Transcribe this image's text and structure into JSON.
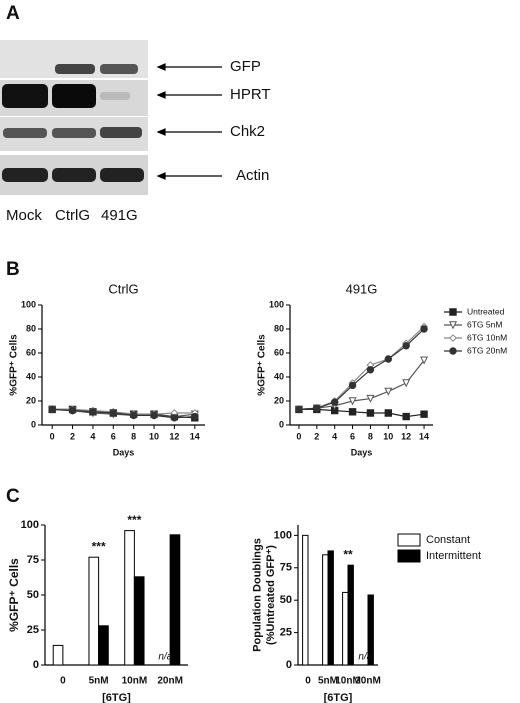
{
  "panel_labels": [
    "A",
    "B",
    "C"
  ],
  "blot": {
    "bands": [
      "GFP",
      "HPRT",
      "Chk2",
      "Actin"
    ],
    "lanes": [
      "Mock",
      "CtrlG",
      "491G"
    ]
  },
  "chart_data": [
    {
      "type": "line",
      "title": "CtrlG",
      "ylabel": "%GFP⁺ Cells",
      "xlabel": "Days",
      "x": [
        0,
        2,
        4,
        6,
        8,
        10,
        12,
        14
      ],
      "xlim": [
        -1,
        15
      ],
      "xticks": [
        0,
        2,
        4,
        6,
        8,
        10,
        12,
        14
      ],
      "ylim": [
        0,
        100
      ],
      "yticks": [
        0,
        20,
        40,
        60,
        80,
        100
      ],
      "series": [
        {
          "color": "#222222",
          "marker": "square",
          "values": [
            13,
            13,
            11,
            10,
            9,
            9,
            7,
            6
          ]
        },
        {
          "color": "#555555",
          "marker": "triangle",
          "values": [
            13,
            12,
            10,
            9,
            8,
            8,
            7,
            9
          ]
        },
        {
          "color": "#888888",
          "marker": "diamond",
          "values": [
            13,
            13,
            12,
            11,
            9,
            9,
            10,
            10
          ]
        },
        {
          "color": "#333333",
          "marker": "circle",
          "values": [
            13,
            12,
            11,
            10,
            8,
            8,
            6,
            7
          ]
        }
      ]
    },
    {
      "type": "line",
      "title": "491G",
      "ylabel": "%GFP⁺ Cells",
      "xlabel": "Days",
      "x": [
        0,
        2,
        4,
        6,
        8,
        10,
        12,
        14
      ],
      "xlim": [
        -1,
        15
      ],
      "xticks": [
        0,
        2,
        4,
        6,
        8,
        10,
        12,
        14
      ],
      "ylim": [
        0,
        100
      ],
      "yticks": [
        0,
        20,
        40,
        60,
        80,
        100
      ],
      "legend": "right",
      "series": [
        {
          "name": "Untreated",
          "color": "#222222",
          "marker": "square",
          "values": [
            13,
            13,
            12,
            11,
            10,
            10,
            7,
            9
          ]
        },
        {
          "name": "6TG 5nM",
          "color": "#555555",
          "marker": "triangle",
          "values": [
            13,
            14,
            16,
            20,
            22,
            28,
            35,
            54
          ]
        },
        {
          "name": "6TG 10nM",
          "color": "#888888",
          "marker": "diamond",
          "values": [
            13,
            14,
            20,
            35,
            50,
            55,
            68,
            82
          ]
        },
        {
          "name": "6TG 20nM",
          "color": "#333333",
          "marker": "circle",
          "values": [
            13,
            14,
            19,
            33,
            46,
            55,
            66,
            80
          ]
        }
      ]
    },
    {
      "type": "bar",
      "ylabel": "%GFP⁺ Cells",
      "xlabel": "[6TG]",
      "categories": [
        "0",
        "5nM",
        "10nM",
        "20nM"
      ],
      "ylim": [
        0,
        100
      ],
      "yticks": [
        0,
        25,
        50,
        75,
        100
      ],
      "annotations": [
        "***",
        "***",
        "n/a"
      ],
      "series": [
        {
          "color": "#ffffff",
          "values": [
            14,
            77,
            96,
            null
          ]
        },
        {
          "color": "#000000",
          "values": [
            null,
            28,
            63,
            93
          ]
        }
      ]
    },
    {
      "type": "bar",
      "ylabel": "Population Doublings (%Untreated GFP⁺)",
      "xlabel": "[6TG]",
      "categories": [
        "0",
        "5nM",
        "10nM",
        "20nM"
      ],
      "ylim": [
        0,
        108
      ],
      "yticks": [
        0,
        25,
        50,
        75,
        100
      ],
      "annotations": [
        "**",
        "n/a"
      ],
      "legend": "right",
      "series": [
        {
          "name": "Constant",
          "color": "#ffffff",
          "values": [
            100,
            85,
            56,
            null
          ]
        },
        {
          "name": "Intermittent",
          "color": "#000000",
          "values": [
            null,
            88,
            77,
            54
          ]
        }
      ]
    }
  ]
}
